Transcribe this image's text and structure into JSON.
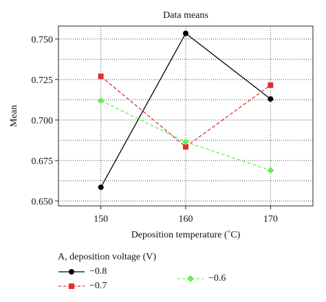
{
  "chart_data": {
    "type": "line",
    "title": "Data means",
    "xlabel": "Deposition temperature (˚C)",
    "ylabel": "Mean",
    "categories": [
      "150",
      "160",
      "170"
    ],
    "x": [
      150,
      160,
      170
    ],
    "xlim": [
      145,
      175
    ],
    "ylim": [
      0.647,
      0.758
    ],
    "yticks": [
      0.65,
      0.675,
      0.7,
      0.725,
      0.75
    ],
    "ytick_labels": [
      "0.650",
      "0.675",
      "0.700",
      "0.725",
      "0.750"
    ],
    "grid": true,
    "legend": {
      "title": "A, deposition voltage (V)",
      "placement": "bottom"
    },
    "series": [
      {
        "name": "−0.8",
        "values": [
          0.6585,
          0.7535,
          0.713
        ],
        "color": "#000000",
        "marker": "circle",
        "dash": "solid"
      },
      {
        "name": "−0.7",
        "values": [
          0.727,
          0.6835,
          0.7215
        ],
        "color": "#e03030",
        "marker": "square",
        "dash": "dashed"
      },
      {
        "name": "−0.6",
        "values": [
          0.712,
          0.6865,
          0.669
        ],
        "color": "#66ee55",
        "marker": "diamond",
        "dash": "dashed"
      }
    ]
  }
}
